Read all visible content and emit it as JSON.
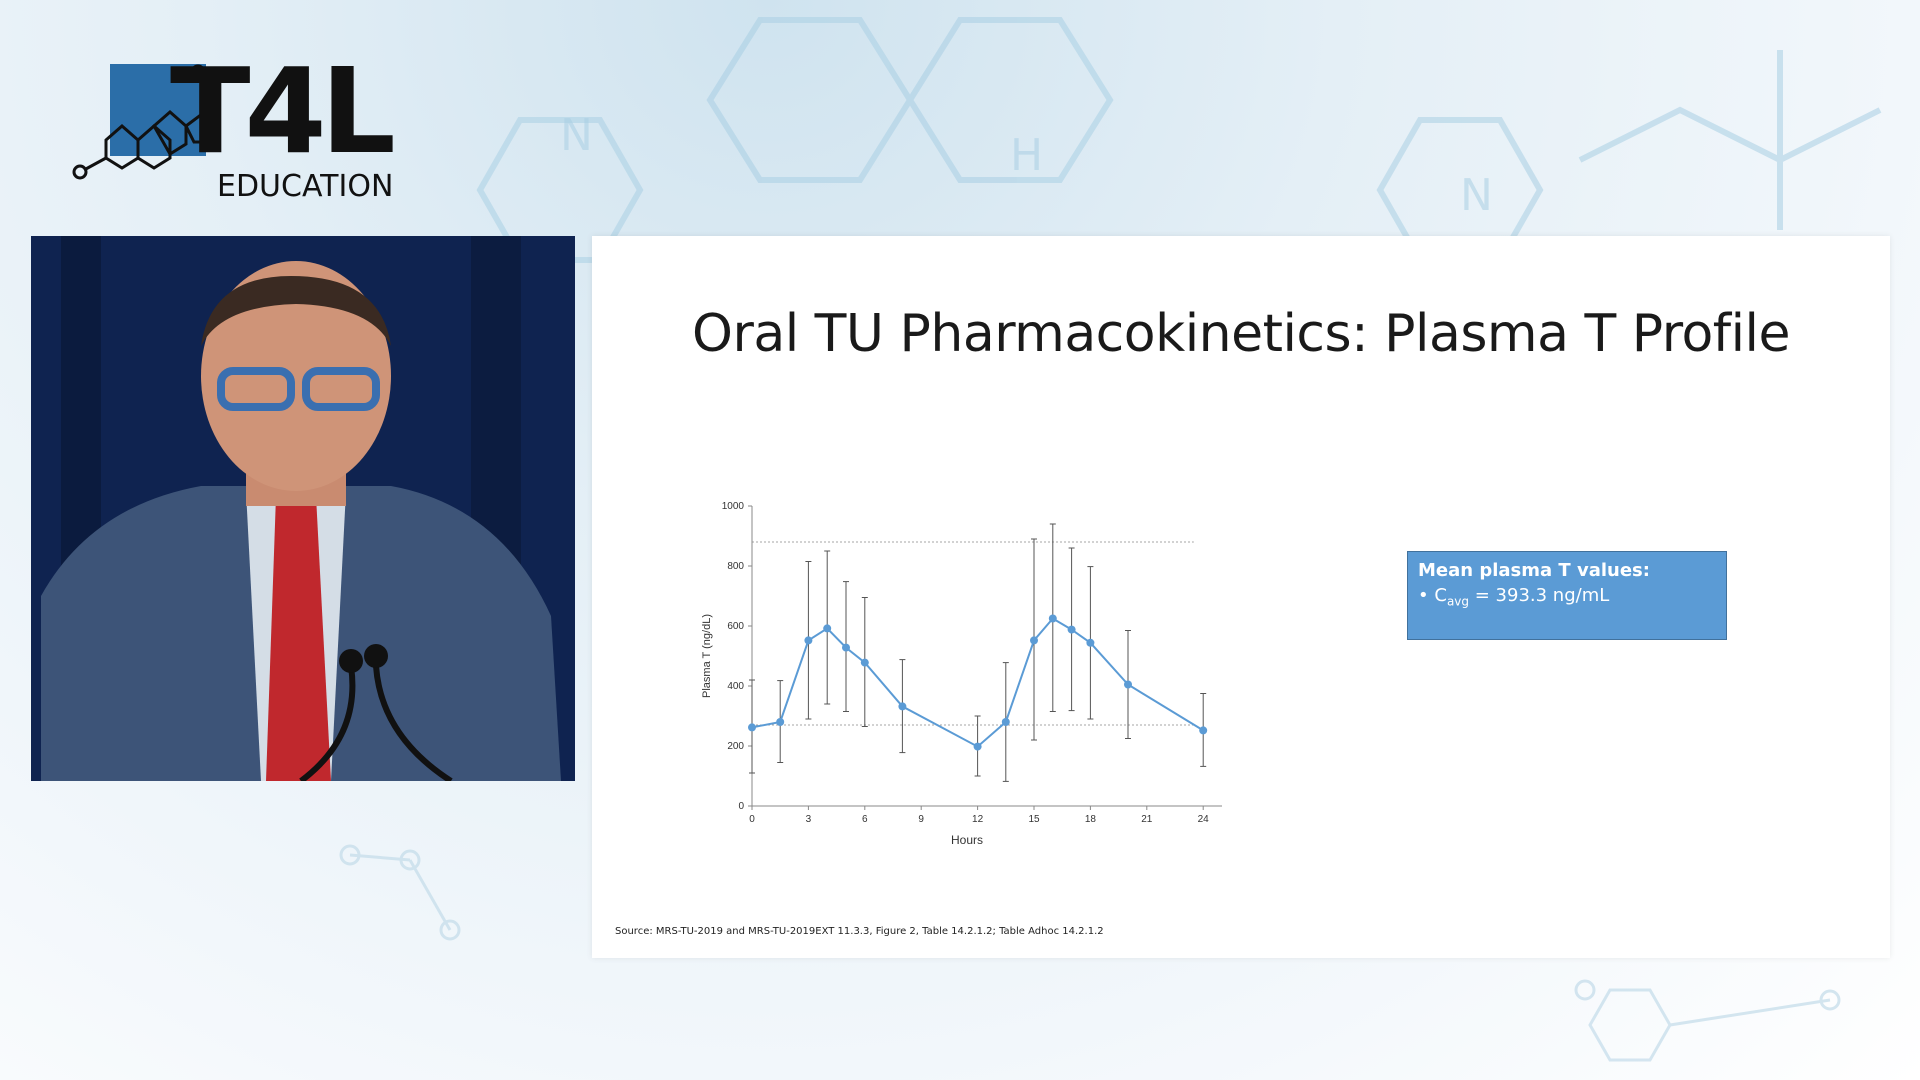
{
  "logo": {
    "brand": "T4L",
    "subtitle": "EDUCATION"
  },
  "slide": {
    "title": "Oral TU Pharmacokinetics: Plasma T Profile",
    "callout_heading": "Mean plasma T values:",
    "callout_bullet": "•",
    "callout_label_main": "C",
    "callout_label_sub": "avg",
    "callout_value": "= 393.3 ng/mL",
    "source": "Source: MRS-TU-2019 and MRS-TU-2019EXT 11.3.3, Figure 2, Table 14.2.1.2; Table Adhoc 14.2.1.2"
  },
  "colors": {
    "series": "#5b9bd5",
    "callout_bg": "#5b9bd5",
    "axis": "#888888",
    "errorbar": "#555555"
  },
  "chart_data": {
    "type": "line",
    "xlabel": "Hours",
    "ylabel": "Plasma T (ng/dL)",
    "xlim": [
      0,
      25
    ],
    "ylim": [
      0,
      1000
    ],
    "xticks": [
      0,
      3,
      6,
      9,
      12,
      15,
      18,
      21,
      24
    ],
    "yticks": [
      0,
      200,
      400,
      600,
      800,
      1000
    ],
    "reference_lines": [
      880,
      270
    ],
    "series": [
      {
        "x": [
          0,
          1.5,
          3,
          4,
          5,
          6,
          8,
          12,
          13.5,
          15,
          16,
          17,
          18,
          20,
          24
        ],
        "y": [
          262,
          280,
          552,
          592,
          528,
          478,
          332,
          198,
          280,
          552,
          625,
          588,
          544,
          405,
          252
        ],
        "err_low": [
          110,
          145,
          290,
          340,
          315,
          265,
          178,
          100,
          82,
          220,
          315,
          318,
          290,
          225,
          132
        ],
        "err_high": [
          420,
          418,
          815,
          850,
          748,
          695,
          488,
          300,
          478,
          890,
          940,
          860,
          798,
          585,
          375
        ]
      }
    ]
  }
}
